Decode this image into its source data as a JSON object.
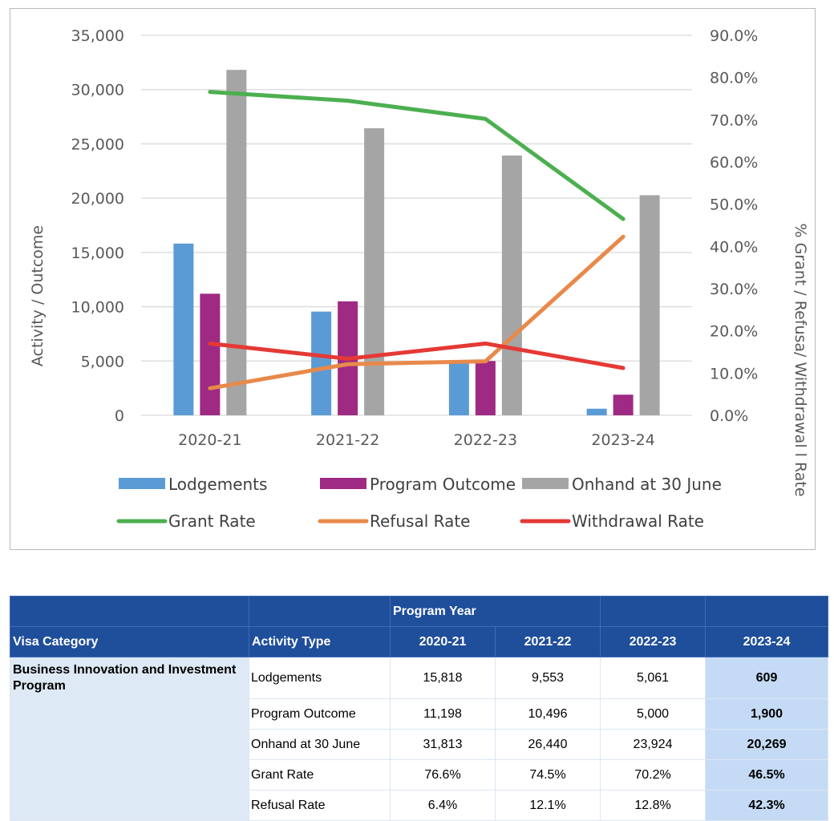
{
  "chart_data": {
    "type": "bar+line",
    "categories": [
      "2020-21",
      "2021-22",
      "2022-23",
      "2023-24"
    ],
    "left_axis": {
      "label": "Activity / Outcome",
      "range": [
        0,
        35000
      ],
      "ticks": [
        "0",
        "5,000",
        "10,000",
        "15,000",
        "20,000",
        "25,000",
        "30,000",
        "35,000"
      ]
    },
    "right_axis": {
      "label": "% Grant / Refusa/ Withdrawal l Rate",
      "range": [
        0,
        90
      ],
      "ticks": [
        "0.0%",
        "10.0%",
        "20.0%",
        "30.0%",
        "40.0%",
        "50.0%",
        "60.0%",
        "70.0%",
        "80.0%",
        "90.0%"
      ]
    },
    "bar_series": [
      {
        "name": "Lodgements",
        "color": "#5b9bd5",
        "values": [
          15818,
          9553,
          5061,
          609
        ]
      },
      {
        "name": "Program Outcome",
        "color": "#9e2a83",
        "values": [
          11198,
          10496,
          5000,
          1900
        ]
      },
      {
        "name": "Onhand at 30 June",
        "color": "#a5a5a5",
        "values": [
          31813,
          26440,
          23924,
          20269
        ]
      }
    ],
    "line_series": [
      {
        "name": "Grant Rate",
        "color": "#4caf50",
        "axis": "right",
        "values": [
          76.6,
          74.5,
          70.2,
          46.5
        ]
      },
      {
        "name": "Refusal Rate",
        "color": "#e8894a",
        "axis": "right",
        "values": [
          6.4,
          12.1,
          12.8,
          42.3
        ]
      },
      {
        "name": "Withdrawal Rate",
        "color": "#e53935",
        "axis": "right",
        "values": [
          17.0,
          13.4,
          17.0,
          11.2
        ]
      }
    ],
    "legend": [
      "Lodgements",
      "Program Outcome",
      "Onhand at 30 June",
      "Grant Rate",
      "Refusal Rate",
      "Withdrawal Rate"
    ],
    "grid": true,
    "legend_position": "bottom"
  },
  "table": {
    "group_header": "Program Year",
    "col_visa": "Visa Category",
    "col_activity": "Activity Type",
    "years": [
      "2020-21",
      "2021-22",
      "2022-23",
      "2023-24"
    ],
    "category": "Business Innovation and Investment Program",
    "rows": [
      {
        "activity": "Lodgements",
        "values": [
          "15,818",
          "9,553",
          "5,061",
          "609"
        ]
      },
      {
        "activity": "Program Outcome",
        "values": [
          "11,198",
          "10,496",
          "5,000",
          "1,900"
        ]
      },
      {
        "activity": "Onhand at 30 June",
        "values": [
          "31,813",
          "26,440",
          "23,924",
          "20,269"
        ]
      },
      {
        "activity": "Grant Rate",
        "values": [
          "76.6%",
          "74.5%",
          "70.2%",
          "46.5%"
        ]
      },
      {
        "activity": "Refusal Rate",
        "values": [
          "6.4%",
          "12.1%",
          "12.8%",
          "42.3%"
        ]
      }
    ]
  }
}
